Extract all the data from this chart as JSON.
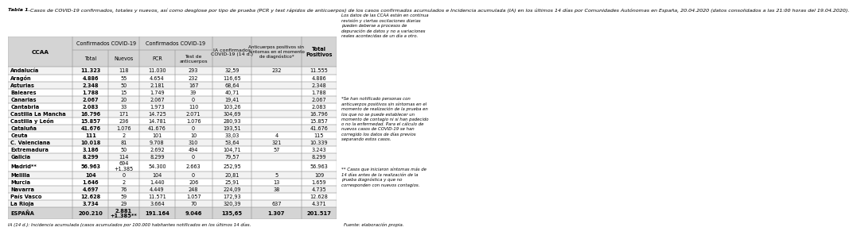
{
  "title_bold": "Tabla 1.",
  "title_rest": " Casos de COVID-19 confirmados, totales y nuevos, así como desglose por tipo de prueba (PCR y test rápidos de anticuerpos) de los casos confirmados acumulados e Incidencia acumulada (IA) en los últimos 14 días por Comunidades Autónomas en España, 20.04.2020 (datos consolidados a las 21:00 horas del 19.04.2020).",
  "rows": [
    [
      "Andalucía",
      "11.323",
      "118",
      "11.030",
      "293",
      "32,59",
      "232",
      "11.555"
    ],
    [
      "Aragón",
      "4.886",
      "55",
      "4.654",
      "232",
      "116,65",
      "",
      "4.886"
    ],
    [
      "Asturias",
      "2.348",
      "50",
      "2.181",
      "167",
      "68,64",
      "",
      "2.348"
    ],
    [
      "Baleares",
      "1.788",
      "15",
      "1.749",
      "39",
      "40,71",
      "",
      "1.788"
    ],
    [
      "Canarias",
      "2.067",
      "20",
      "2.067",
      "0",
      "19,41",
      "",
      "2.067"
    ],
    [
      "Cantabria",
      "2.083",
      "33",
      "1.973",
      "110",
      "103,26",
      "",
      "2.083"
    ],
    [
      "Castilla La Mancha",
      "16.796",
      "171",
      "14.725",
      "2.071",
      "304,69",
      "",
      "16.796"
    ],
    [
      "Castilla y León",
      "15.857",
      "236",
      "14.781",
      "1.076",
      "280,93",
      "",
      "15.857"
    ],
    [
      "Cataluña",
      "41.676",
      "1.076",
      "41.676",
      "0",
      "193,51",
      "",
      "41.676"
    ],
    [
      "Ceuta",
      "111",
      "2",
      "101",
      "10",
      "33,03",
      "4",
      "115"
    ],
    [
      "C. Valenciana",
      "10.018",
      "81",
      "9.708",
      "310",
      "53,64",
      "321",
      "10.339"
    ],
    [
      "Extremadura",
      "3.186",
      "50",
      "2.692",
      "494",
      "104,71",
      "57",
      "3.243"
    ],
    [
      "Galicia",
      "8.299",
      "114",
      "8.299",
      "0",
      "79,57",
      "",
      "8.299"
    ],
    [
      "Madrid**",
      "56.963",
      "694\n+1.385",
      "54.300",
      "2.663",
      "252,95",
      "",
      "56.963"
    ],
    [
      "Melilla",
      "104",
      "0",
      "104",
      "0",
      "20,81",
      "5",
      "109"
    ],
    [
      "Murcia",
      "1.646",
      "2",
      "1.440",
      "206",
      "25,91",
      "13",
      "1.659"
    ],
    [
      "Navarra",
      "4.697",
      "76",
      "4.449",
      "248",
      "224,09",
      "38",
      "4.735"
    ],
    [
      "País Vasco",
      "12.628",
      "59",
      "11.571",
      "1.057",
      "172,93",
      "",
      "12.628"
    ],
    [
      "La Rioja",
      "3.734",
      "29",
      "3.664",
      "70",
      "320,39",
      "637",
      "4.371"
    ]
  ],
  "total_row": [
    "ESPAÑA",
    "200.210",
    "2.881\n+1.385**",
    "191.164",
    "9.046",
    "135,65",
    "1.307",
    "201.517"
  ],
  "footnote": "IA (14 d.): Incidencia acumulada (casos acumulados por 100.000 habitantes notificados en los últimos 14 días.",
  "footnote2": "Fuente: elaboración propia.",
  "side_note1": "Los datos de las CCAA están en continua\nrevisión y ciertas oscilaciones diarias\npueden deberse a procesos de\ndepuración de datos y no a variaciones\nreales acontecidas de un día a otro.",
  "side_note2": "*Se han notificado personas con\nanticuerpos positivos sin síntomas en el\nmomento de realización de la prueba en\nlos que no se puede establecer un\nmomento de contagio ni si han padecido\no no la enfermedad. Para el cálculo de\nnuevos casos de COVID-19 se han\ncorregido los datos de días previos\nseparando estos casos.",
  "side_note3": "** Casos que iniciaron síntomas más de\n14 días antes de la realización de la\nprueba diagnóstica y que no\ncorresponden con nuevos contagios.",
  "header_bg": "#d4d4d4",
  "row_bg_even": "#f2f2f2",
  "row_bg_odd": "#ffffff",
  "total_bg": "#d4d4d4",
  "border_color": "#999999",
  "text_color": "#000000"
}
